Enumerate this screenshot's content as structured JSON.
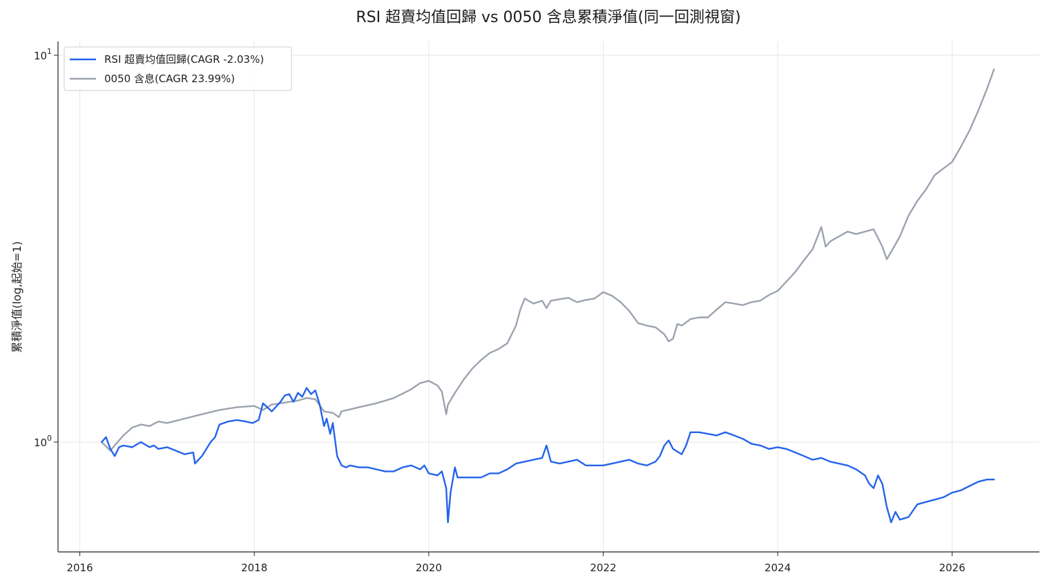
{
  "chart_data": {
    "type": "line",
    "title": "RSI 超賣均值回歸 vs 0050 含息累積淨值(同一回測視窗)",
    "ylabel": "累積淨值(log,起始=1)",
    "xlabel": "",
    "yscale": "log",
    "ylim": [
      0.52,
      10.0
    ],
    "xlim": [
      2015.75,
      2027.0
    ],
    "grid": true,
    "legend_position": "top-left",
    "x_ticks": [
      {
        "value": 2016,
        "label": "2016"
      },
      {
        "value": 2018,
        "label": "2018"
      },
      {
        "value": 2020,
        "label": "2020"
      },
      {
        "value": 2022,
        "label": "2022"
      },
      {
        "value": 2024,
        "label": "2024"
      },
      {
        "value": 2026,
        "label": "2026"
      }
    ],
    "y_ticks": [
      {
        "value": 1,
        "base": "10",
        "exp": "0"
      },
      {
        "value": 10,
        "base": "10",
        "exp": "1"
      }
    ],
    "series": [
      {
        "name": "RSI 超賣均值回歸(CAGR -2.03%)",
        "color": "#2563eb",
        "x": [
          2016.25,
          2016.3,
          2016.35,
          2016.4,
          2016.45,
          2016.5,
          2016.6,
          2016.7,
          2016.8,
          2016.85,
          2016.9,
          2017.0,
          2017.1,
          2017.2,
          2017.3,
          2017.32,
          2017.4,
          2017.5,
          2017.55,
          2017.6,
          2017.7,
          2017.8,
          2017.9,
          2017.98,
          2018.05,
          2018.1,
          2018.2,
          2018.3,
          2018.35,
          2018.4,
          2018.45,
          2018.5,
          2018.55,
          2018.6,
          2018.65,
          2018.7,
          2018.75,
          2018.8,
          2018.83,
          2018.87,
          2018.9,
          2018.95,
          2019.0,
          2019.05,
          2019.1,
          2019.2,
          2019.3,
          2019.4,
          2019.5,
          2019.6,
          2019.7,
          2019.8,
          2019.9,
          2019.95,
          2020.0,
          2020.1,
          2020.15,
          2020.2,
          2020.22,
          2020.25,
          2020.3,
          2020.33,
          2020.4,
          2020.6,
          2020.7,
          2020.8,
          2020.9,
          2021.0,
          2021.1,
          2021.2,
          2021.3,
          2021.35,
          2021.4,
          2021.5,
          2021.6,
          2021.7,
          2021.8,
          2021.9,
          2022.0,
          2022.1,
          2022.2,
          2022.3,
          2022.4,
          2022.5,
          2022.6,
          2022.65,
          2022.7,
          2022.75,
          2022.8,
          2022.9,
          2022.95,
          2023.0,
          2023.1,
          2023.2,
          2023.3,
          2023.4,
          2023.5,
          2023.6,
          2023.7,
          2023.8,
          2023.9,
          2024.0,
          2024.1,
          2024.2,
          2024.3,
          2024.4,
          2024.5,
          2024.6,
          2024.7,
          2024.8,
          2024.9,
          2025.0,
          2025.05,
          2025.1,
          2025.15,
          2025.2,
          2025.25,
          2025.3,
          2025.35,
          2025.4,
          2025.5,
          2025.6,
          2025.7,
          2025.8,
          2025.9,
          2026.0,
          2026.1,
          2026.2,
          2026.3,
          2026.4,
          2026.48
        ],
        "values": [
          1.0,
          1.03,
          0.96,
          0.92,
          0.97,
          0.98,
          0.97,
          1.0,
          0.97,
          0.98,
          0.96,
          0.97,
          0.95,
          0.93,
          0.94,
          0.88,
          0.92,
          1.0,
          1.03,
          1.11,
          1.13,
          1.14,
          1.13,
          1.12,
          1.14,
          1.26,
          1.2,
          1.27,
          1.32,
          1.33,
          1.27,
          1.34,
          1.31,
          1.38,
          1.33,
          1.36,
          1.25,
          1.1,
          1.15,
          1.05,
          1.12,
          0.92,
          0.87,
          0.86,
          0.87,
          0.86,
          0.86,
          0.85,
          0.84,
          0.84,
          0.86,
          0.87,
          0.85,
          0.87,
          0.83,
          0.82,
          0.84,
          0.76,
          0.62,
          0.74,
          0.86,
          0.81,
          0.81,
          0.81,
          0.83,
          0.83,
          0.85,
          0.88,
          0.89,
          0.9,
          0.91,
          0.98,
          0.89,
          0.88,
          0.89,
          0.9,
          0.87,
          0.87,
          0.87,
          0.88,
          0.89,
          0.9,
          0.88,
          0.87,
          0.89,
          0.92,
          0.98,
          1.01,
          0.96,
          0.93,
          0.98,
          1.06,
          1.06,
          1.05,
          1.04,
          1.06,
          1.04,
          1.02,
          0.99,
          0.98,
          0.96,
          0.97,
          0.96,
          0.94,
          0.92,
          0.9,
          0.91,
          0.89,
          0.88,
          0.87,
          0.85,
          0.82,
          0.78,
          0.76,
          0.82,
          0.78,
          0.68,
          0.62,
          0.66,
          0.63,
          0.64,
          0.69,
          0.7,
          0.71,
          0.72,
          0.74,
          0.75,
          0.77,
          0.79,
          0.8,
          0.8
        ]
      },
      {
        "name": "0050 含息(CAGR 23.99%)",
        "color": "#9ca3af",
        "x": [
          2016.25,
          2016.35,
          2016.4,
          2016.5,
          2016.6,
          2016.7,
          2016.8,
          2016.9,
          2017.0,
          2017.2,
          2017.4,
          2017.6,
          2017.8,
          2018.0,
          2018.1,
          2018.2,
          2018.3,
          2018.4,
          2018.5,
          2018.6,
          2018.7,
          2018.8,
          2018.9,
          2018.97,
          2019.0,
          2019.2,
          2019.4,
          2019.6,
          2019.8,
          2019.9,
          2020.0,
          2020.1,
          2020.15,
          2020.2,
          2020.22,
          2020.3,
          2020.4,
          2020.5,
          2020.6,
          2020.7,
          2020.8,
          2020.9,
          2021.0,
          2021.05,
          2021.1,
          2021.2,
          2021.3,
          2021.35,
          2021.4,
          2021.5,
          2021.6,
          2021.7,
          2021.8,
          2021.9,
          2022.0,
          2022.1,
          2022.2,
          2022.3,
          2022.4,
          2022.5,
          2022.6,
          2022.7,
          2022.75,
          2022.8,
          2022.85,
          2022.9,
          2023.0,
          2023.1,
          2023.2,
          2023.3,
          2023.4,
          2023.5,
          2023.6,
          2023.7,
          2023.8,
          2023.9,
          2024.0,
          2024.1,
          2024.2,
          2024.3,
          2024.4,
          2024.5,
          2024.55,
          2024.6,
          2024.7,
          2024.8,
          2024.9,
          2025.0,
          2025.1,
          2025.2,
          2025.25,
          2025.3,
          2025.4,
          2025.5,
          2025.6,
          2025.7,
          2025.8,
          2025.9,
          2026.0,
          2026.1,
          2026.2,
          2026.3,
          2026.4,
          2026.48
        ],
        "values": [
          1.0,
          0.95,
          0.98,
          1.04,
          1.09,
          1.11,
          1.1,
          1.13,
          1.12,
          1.15,
          1.18,
          1.21,
          1.23,
          1.24,
          1.21,
          1.25,
          1.26,
          1.27,
          1.28,
          1.3,
          1.29,
          1.2,
          1.19,
          1.16,
          1.2,
          1.23,
          1.26,
          1.3,
          1.37,
          1.42,
          1.44,
          1.4,
          1.35,
          1.18,
          1.25,
          1.34,
          1.45,
          1.55,
          1.63,
          1.7,
          1.74,
          1.8,
          2.0,
          2.2,
          2.35,
          2.28,
          2.32,
          2.22,
          2.32,
          2.34,
          2.36,
          2.3,
          2.33,
          2.35,
          2.44,
          2.39,
          2.3,
          2.18,
          2.03,
          2.0,
          1.98,
          1.9,
          1.82,
          1.85,
          2.02,
          2.0,
          2.08,
          2.1,
          2.1,
          2.2,
          2.3,
          2.28,
          2.26,
          2.3,
          2.32,
          2.4,
          2.46,
          2.6,
          2.75,
          2.95,
          3.15,
          3.6,
          3.2,
          3.3,
          3.4,
          3.5,
          3.45,
          3.5,
          3.55,
          3.2,
          2.97,
          3.1,
          3.4,
          3.85,
          4.2,
          4.5,
          4.9,
          5.1,
          5.3,
          5.8,
          6.4,
          7.2,
          8.2,
          9.2
        ]
      }
    ]
  }
}
